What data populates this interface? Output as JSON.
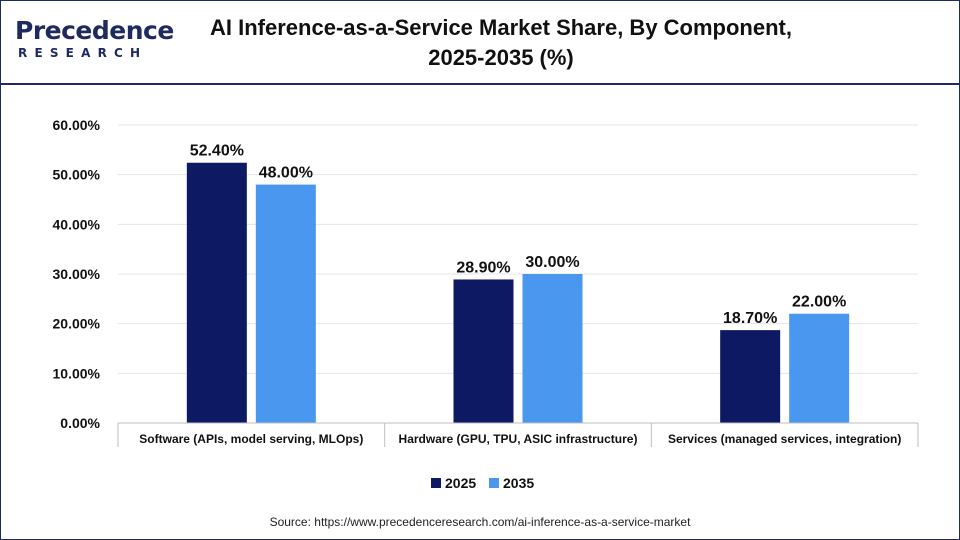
{
  "logo": {
    "main": "Precedence",
    "sub": "RESEARCH"
  },
  "title_line1": "AI Inference-as-a-Service Market Share, By Component,",
  "title_line2": "2025-2035 (%)",
  "source": "Source: https://www.precedenceresearch.com/ai-inference-as-a-service-market",
  "colors": {
    "brand": "#1f2a60",
    "series_2025": "#0d1a63",
    "series_2035": "#4a97ef"
  },
  "chart_data": {
    "type": "bar",
    "title": "AI Inference-as-a-Service Market Share, By Component, 2025-2035 (%)",
    "categories": [
      "Software (APIs, model serving, MLOps)",
      "Hardware (GPU, TPU, ASIC infrastructure)",
      "Services (managed services, integration)"
    ],
    "series": [
      {
        "name": "2025",
        "values": [
          52.4,
          28.9,
          18.7
        ],
        "labels": [
          "52.40%",
          "28.90%",
          "18.70%"
        ]
      },
      {
        "name": "2035",
        "values": [
          48.0,
          30.0,
          22.0
        ],
        "labels": [
          "48.00%",
          "30.00%",
          "22.00%"
        ]
      }
    ],
    "yticks": [
      "0.00%",
      "10.00%",
      "20.00%",
      "30.00%",
      "40.00%",
      "50.00%",
      "60.00%"
    ],
    "ylim": [
      0,
      60
    ],
    "legend_position": "bottom",
    "grid": true
  }
}
